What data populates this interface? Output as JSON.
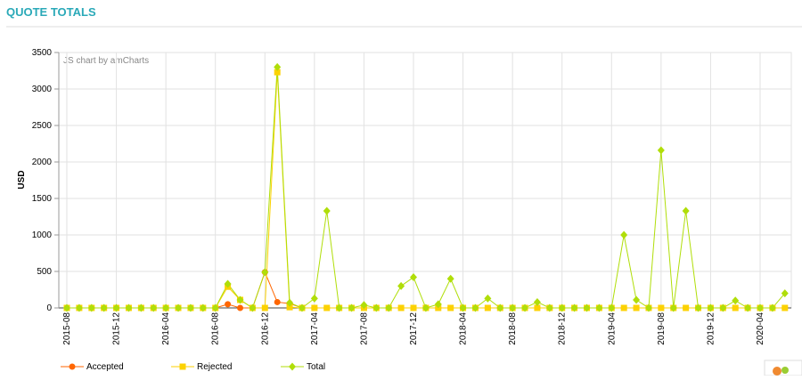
{
  "header": {
    "title": "QUOTE TOTALS"
  },
  "chart_data": {
    "type": "line",
    "credit": "JS chart by amCharts",
    "y_label": "USD",
    "categories": [
      "2015-08",
      null,
      null,
      null,
      "2015-12",
      null,
      null,
      null,
      "2016-04",
      null,
      null,
      null,
      "2016-08",
      null,
      null,
      null,
      "2016-12",
      null,
      null,
      null,
      "2017-04",
      null,
      null,
      null,
      "2017-08",
      null,
      null,
      null,
      "2017-12",
      null,
      null,
      null,
      "2018-04",
      null,
      null,
      null,
      "2018-08",
      null,
      null,
      null,
      "2018-12",
      null,
      null,
      null,
      "2019-04",
      null,
      null,
      null,
      "2019-08",
      null,
      null,
      null,
      "2019-12",
      null,
      null,
      null,
      "2020-04",
      null,
      null
    ],
    "series": [
      {
        "name": "Accepted",
        "color": "#ff6600",
        "marker": "circle",
        "values": [
          0,
          0,
          0,
          0,
          0,
          0,
          0,
          0,
          0,
          0,
          0,
          0,
          0,
          50,
          0,
          0,
          490,
          80,
          60,
          0,
          0,
          0,
          0,
          0,
          0,
          0,
          0,
          0,
          0,
          0,
          0,
          0,
          0,
          0,
          0,
          0,
          0,
          0,
          0,
          0,
          0,
          0,
          0,
          0,
          0,
          0,
          0,
          0,
          0,
          0,
          0,
          0,
          0,
          0,
          0,
          0,
          0,
          0,
          0
        ]
      },
      {
        "name": "Rejected",
        "color": "#fcd202",
        "marker": "square",
        "values": [
          0,
          0,
          0,
          0,
          0,
          0,
          0,
          0,
          0,
          0,
          0,
          0,
          0,
          290,
          110,
          0,
          0,
          3230,
          10,
          0,
          0,
          0,
          0,
          0,
          0,
          0,
          0,
          0,
          0,
          0,
          0,
          0,
          0,
          0,
          0,
          0,
          0,
          0,
          0,
          0,
          0,
          0,
          0,
          0,
          0,
          0,
          0,
          0,
          0,
          0,
          0,
          0,
          0,
          0,
          0,
          0,
          0,
          0,
          0
        ]
      },
      {
        "name": "Total",
        "color": "#b0de09",
        "marker": "diamond",
        "values": [
          0,
          0,
          0,
          0,
          0,
          0,
          0,
          0,
          0,
          0,
          0,
          0,
          0,
          330,
          110,
          0,
          490,
          3300,
          70,
          0,
          130,
          1330,
          0,
          0,
          40,
          0,
          0,
          300,
          420,
          0,
          50,
          400,
          0,
          0,
          130,
          0,
          0,
          0,
          80,
          0,
          0,
          0,
          0,
          0,
          0,
          1000,
          110,
          0,
          2160,
          0,
          1330,
          0,
          0,
          0,
          100,
          0,
          0,
          0,
          200
        ]
      }
    ],
    "ylim": [
      0,
      3500
    ],
    "yticks": [
      0,
      500,
      1000,
      1500,
      2000,
      2500,
      3000,
      3500
    ],
    "grid": true
  }
}
